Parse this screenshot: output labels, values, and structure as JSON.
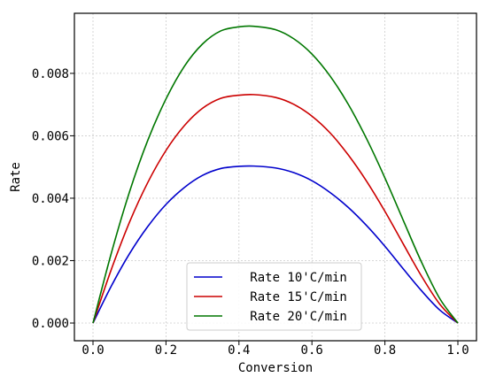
{
  "chart_data": {
    "type": "line",
    "title": "",
    "xlabel": "Conversion",
    "ylabel": "Rate",
    "xlim": [
      0.0,
      1.0
    ],
    "ylim": [
      0.0,
      0.0095
    ],
    "xticks": [
      "0.0",
      "0.2",
      "0.4",
      "0.6",
      "0.8",
      "1.0"
    ],
    "yticks": [
      "0.000",
      "0.002",
      "0.004",
      "0.006",
      "0.008"
    ],
    "grid": true,
    "legend_position": "bottom-center",
    "x": [
      0.0,
      0.05,
      0.1,
      0.15,
      0.2,
      0.25,
      0.3,
      0.35,
      0.4,
      0.44,
      0.5,
      0.55,
      0.6,
      0.65,
      0.7,
      0.75,
      0.8,
      0.85,
      0.9,
      0.95,
      1.0
    ],
    "series": [
      {
        "name": "   Rate 10'C/min",
        "color": "#0000cc",
        "values": [
          0.0,
          0.00118,
          0.00222,
          0.00309,
          0.0038,
          0.00434,
          0.00473,
          0.00495,
          0.00502,
          0.00503,
          0.00497,
          0.00482,
          0.00456,
          0.00418,
          0.0037,
          0.00312,
          0.00246,
          0.00174,
          0.00104,
          0.00042,
          0.0
        ]
      },
      {
        "name": "   Rate 15'C/min",
        "color": "#cc0000",
        "values": [
          0.0,
          0.00171,
          0.00323,
          0.0045,
          0.00553,
          0.00632,
          0.00688,
          0.0072,
          0.0073,
          0.00732,
          0.00723,
          0.00701,
          0.00663,
          0.00609,
          0.00538,
          0.00454,
          0.00358,
          0.00254,
          0.00151,
          0.00061,
          0.0
        ]
      },
      {
        "name": "   Rate 20'C/min",
        "color": "#007700",
        "values": [
          0.0,
          0.00223,
          0.0042,
          0.00585,
          0.00718,
          0.00822,
          0.00894,
          0.00936,
          0.00949,
          0.00951,
          0.0094,
          0.00911,
          0.00862,
          0.00791,
          0.007,
          0.0059,
          0.00465,
          0.0033,
          0.00196,
          0.00079,
          0.0
        ]
      }
    ]
  }
}
